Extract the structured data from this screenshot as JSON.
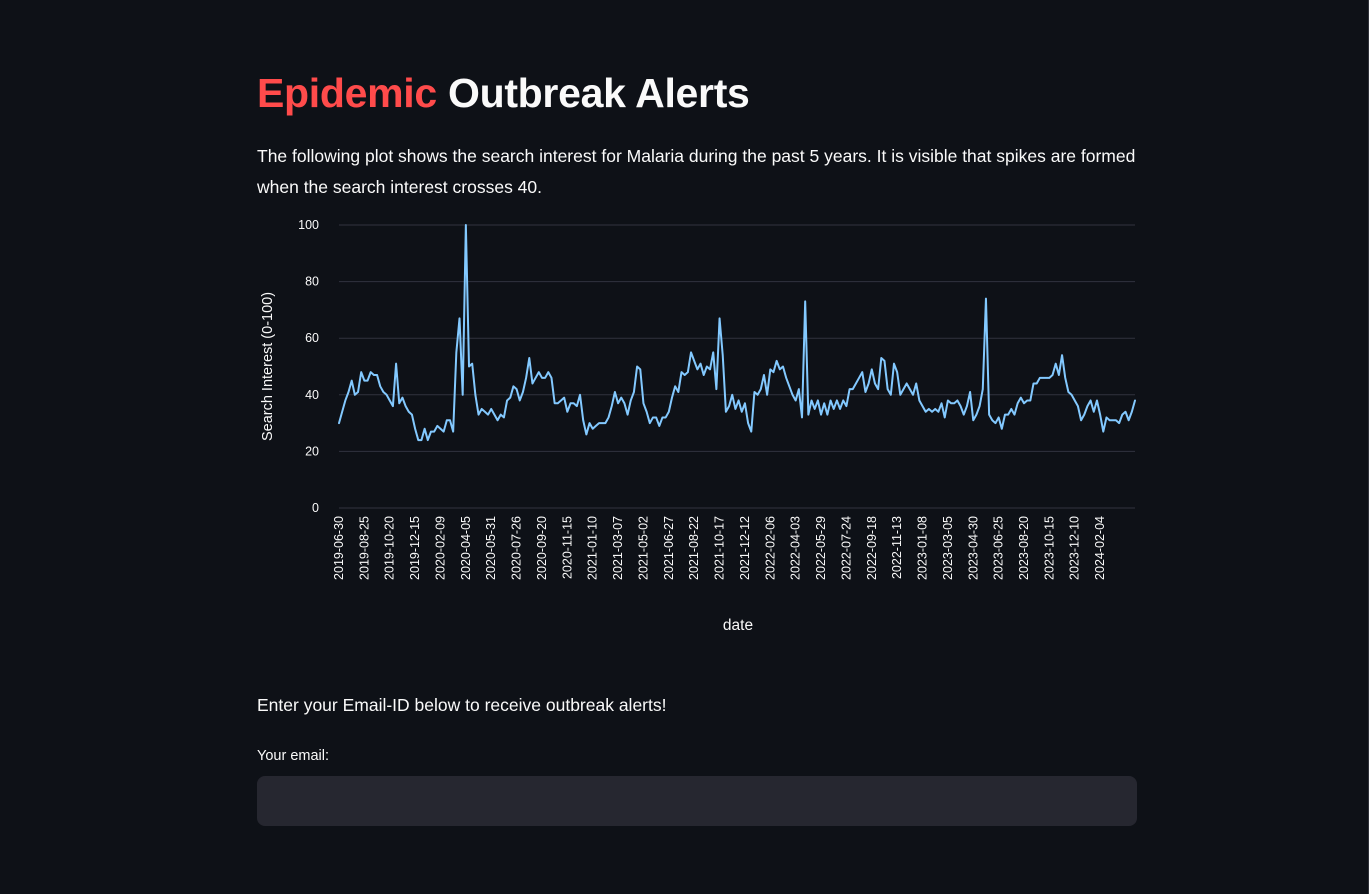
{
  "title": {
    "accent": "Epidemic",
    "rest": "Outbreak Alerts"
  },
  "description": "The following plot shows the search interest for Malaria during the past 5 years. It is visible that spikes are formed when the search interest crosses 40.",
  "alert_prompt": "Enter your Email-ID below to receive outbreak alerts!",
  "email": {
    "label": "Your email:",
    "value": "",
    "placeholder": ""
  },
  "colors": {
    "background": "#0e1117",
    "accent": "#ff4b4b",
    "line": "#83c9ff",
    "grid": "#31333f",
    "input_bg": "#262730"
  },
  "chart_data": {
    "type": "line",
    "xlabel": "date",
    "ylabel": "Search Interest (0-100)",
    "ylim": [
      0,
      100
    ],
    "yticks": [
      0,
      20,
      40,
      60,
      80,
      100
    ],
    "grid": true,
    "x_start": "2019-06-30",
    "x_interval_days": 7,
    "tick_labels": [
      "2019-06-30",
      "2019-08-25",
      "2019-10-20",
      "2019-12-15",
      "2020-02-09",
      "2020-04-05",
      "2020-05-31",
      "2020-07-26",
      "2020-09-20",
      "2020-11-15",
      "2021-01-10",
      "2021-03-07",
      "2021-05-02",
      "2021-06-27",
      "2021-08-22",
      "2021-10-17",
      "2021-12-12",
      "2022-02-06",
      "2022-04-03",
      "2022-05-29",
      "2022-07-24",
      "2022-09-18",
      "2022-11-13",
      "2023-01-08",
      "2023-03-05",
      "2023-04-30",
      "2023-06-25",
      "2023-08-20",
      "2023-10-15",
      "2023-12-10",
      "2024-02-04"
    ],
    "series": [
      {
        "name": "Malaria",
        "color": "#83c9ff",
        "values": [
          30,
          34,
          38,
          41,
          45,
          40,
          41,
          48,
          45,
          45,
          48,
          47,
          47,
          43,
          41,
          40,
          38,
          36,
          51,
          37,
          39,
          36,
          34,
          33,
          28,
          24,
          24,
          28,
          24,
          27,
          27,
          29,
          28,
          27,
          31,
          31,
          27,
          55,
          67,
          40,
          100,
          50,
          51,
          40,
          33,
          35,
          34,
          33,
          35,
          33,
          31,
          33,
          32,
          38,
          39,
          43,
          42,
          38,
          41,
          46,
          53,
          44,
          46,
          48,
          46,
          46,
          48,
          46,
          37,
          37,
          38,
          39,
          34,
          37,
          37,
          36,
          40,
          31,
          26,
          30,
          28,
          29,
          30,
          30,
          30,
          32,
          36,
          41,
          37,
          39,
          37,
          33,
          38,
          41,
          50,
          49,
          37,
          34,
          30,
          32,
          32,
          29,
          32,
          32,
          34,
          39,
          43,
          41,
          48,
          47,
          48,
          55,
          52,
          49,
          51,
          47,
          50,
          49,
          55,
          42,
          67,
          54,
          34,
          36,
          40,
          35,
          38,
          34,
          37,
          30,
          27,
          41,
          40,
          42,
          47,
          40,
          49,
          48,
          52,
          49,
          50,
          46,
          43,
          40,
          38,
          42,
          32,
          73,
          33,
          38,
          35,
          38,
          33,
          37,
          33,
          38,
          35,
          38,
          35,
          38,
          36,
          42,
          42,
          44,
          46,
          48,
          41,
          44,
          49,
          44,
          42,
          53,
          52,
          42,
          40,
          51,
          48,
          40,
          42,
          44,
          42,
          40,
          44,
          38,
          36,
          34,
          35,
          34,
          35,
          34,
          37,
          32,
          38,
          37,
          37,
          38,
          36,
          33,
          36,
          41,
          31,
          33,
          36,
          42,
          74,
          33,
          31,
          30,
          32,
          28,
          33,
          33,
          35,
          33,
          37,
          39,
          37,
          38,
          38,
          44,
          44,
          46,
          46,
          46,
          46,
          47,
          51,
          47,
          54,
          46,
          41,
          40,
          38,
          36,
          31,
          33,
          36,
          38,
          34,
          38,
          33,
          27,
          32,
          31,
          31,
          31,
          30,
          33,
          34,
          31,
          34,
          38
        ]
      }
    ]
  }
}
